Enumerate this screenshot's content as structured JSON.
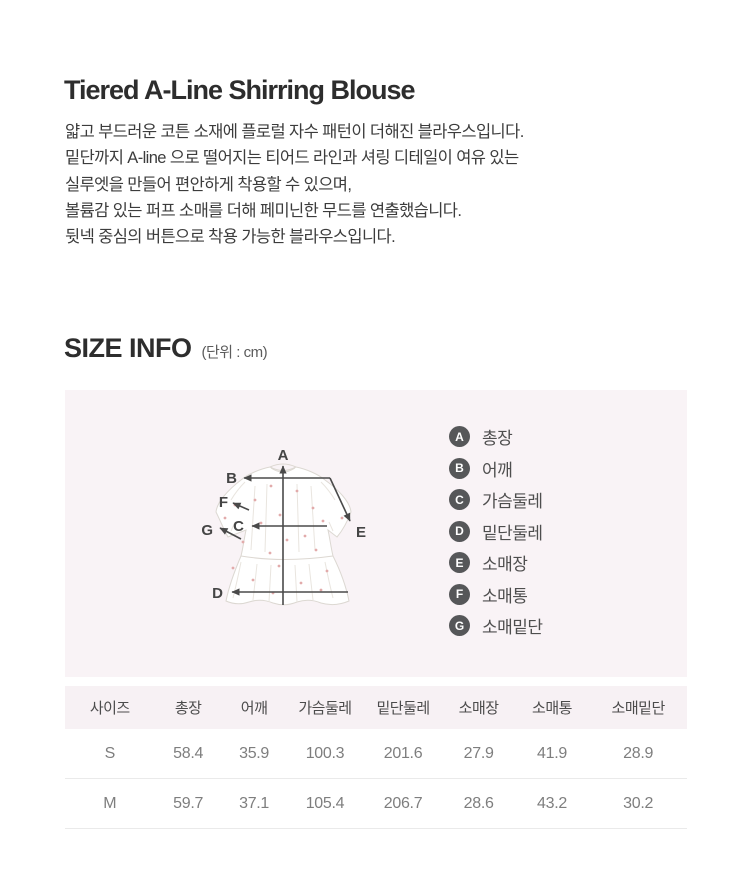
{
  "product": {
    "title": "Tiered A-Line Shirring Blouse",
    "description_lines": [
      "얇고 부드러운 코튼 소재에 플로럴 자수 패턴이 더해진 블라우스입니다.",
      "밑단까지 A-line 으로 떨어지는 티어드 라인과 셔링 디테일이 여유 있는",
      "실루엣을 만들어 편안하게 착용할 수 있으며,",
      "볼륨감 있는 퍼프 소매를 더해 페미닌한 무드를 연출했습니다.",
      "뒷넥 중심의 버튼으로 착용 가능한 블라우스입니다."
    ]
  },
  "size_info": {
    "heading": "SIZE INFO",
    "unit_note": "(단위 : cm)",
    "legend": [
      {
        "key": "A",
        "label": "총장"
      },
      {
        "key": "B",
        "label": "어깨"
      },
      {
        "key": "C",
        "label": "가슴둘레"
      },
      {
        "key": "D",
        "label": "밑단둘레"
      },
      {
        "key": "E",
        "label": "소매장"
      },
      {
        "key": "F",
        "label": "소매통"
      },
      {
        "key": "G",
        "label": "소매밑단"
      }
    ]
  },
  "size_table": {
    "columns": [
      "사이즈",
      "총장",
      "어깨",
      "가슴둘레",
      "밑단둘레",
      "소매장",
      "소매통",
      "소매밑단"
    ],
    "column_widths_pct": [
      14.4,
      10.8,
      10.4,
      12.4,
      12.7,
      11.6,
      12.0,
      15.7
    ],
    "rows": [
      {
        "size": "S",
        "values": [
          "58.4",
          "35.9",
          "100.3",
          "201.6",
          "27.9",
          "41.9",
          "28.9"
        ]
      },
      {
        "size": "M",
        "values": [
          "59.7",
          "37.1",
          "105.4",
          "206.7",
          "28.6",
          "43.2",
          "30.2"
        ]
      }
    ]
  },
  "colors": {
    "panel_bg": "#f9f3f6",
    "table_header_bg": "#f7f1f4",
    "badge": "#565759",
    "arrow": "#4a4a4a",
    "dot": "#e2abab"
  }
}
